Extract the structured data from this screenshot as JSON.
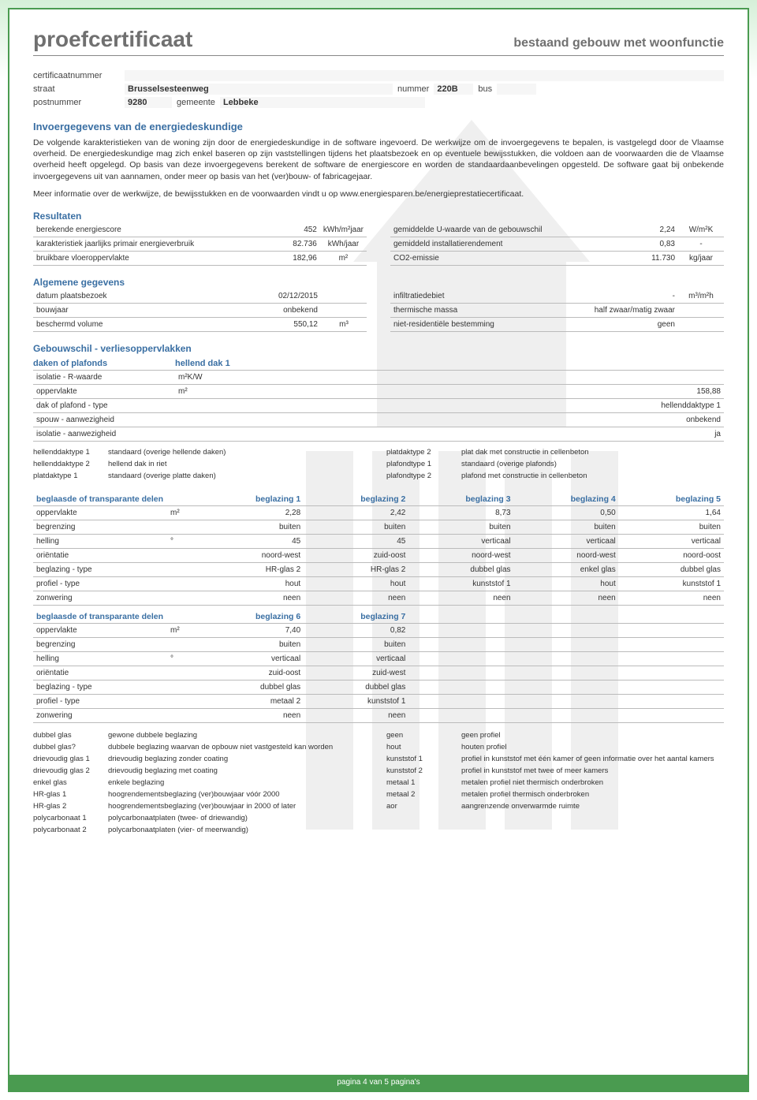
{
  "doc": {
    "title": "proefcertificaat",
    "subtitle": "bestaand gebouw met woonfunctie"
  },
  "header_fields": {
    "cert_label": "certificaatnummer",
    "cert_val": "",
    "straat_label": "straat",
    "straat_val": "Brusselsesteenweg",
    "nummer_label": "nummer",
    "nummer_val": "220B",
    "bus_label": "bus",
    "bus_val": "",
    "post_label": "postnummer",
    "post_val": "9280",
    "gemeente_label": "gemeente",
    "gemeente_val": "Lebbeke"
  },
  "section1": {
    "title": "Invoergegevens van de energiedeskundige",
    "p1": "De volgende karakteristieken van de woning zijn door de energiedeskundige in de software ingevoerd. De werkwijze om de invoergegevens te bepalen, is vastgelegd door de Vlaamse overheid. De energiedeskundige mag zich enkel baseren op zijn vaststellingen tijdens het plaatsbezoek en op eventuele bewijsstukken, die voldoen aan de voorwaarden die de Vlaamse overheid heeft opgelegd. Op basis van deze invoergegevens berekent de software de energiescore en worden de standaardaanbevelingen opgesteld. De software gaat bij onbekende invoergegevens uit van aannamen, onder meer op basis van het (ver)bouw- of fabricagejaar.",
    "p2": "Meer informatie over de werkwijze, de bewijsstukken en de voorwaarden vindt u op www.energiesparen.be/energieprestatiecertificaat."
  },
  "resultaten": {
    "title": "Resultaten",
    "left": [
      {
        "label": "berekende energiescore",
        "val": "452",
        "unit": "kWh/m²jaar"
      },
      {
        "label": "karakteristiek jaarlijks primair energieverbruik",
        "val": "82.736",
        "unit": "kWh/jaar"
      },
      {
        "label": "bruikbare vloeroppervlakte",
        "val": "182,96",
        "unit": "m²"
      }
    ],
    "right": [
      {
        "label": "gemiddelde U-waarde van de gebouwschil",
        "val": "2,24",
        "unit": "W/m²K"
      },
      {
        "label": "gemiddeld installatierendement",
        "val": "0,83",
        "unit": "-"
      },
      {
        "label": "CO2-emissie",
        "val": "11.730",
        "unit": "kg/jaar"
      }
    ]
  },
  "algemeen": {
    "title": "Algemene gegevens",
    "left": [
      {
        "label": "datum plaatsbezoek",
        "val": "02/12/2015",
        "unit": ""
      },
      {
        "label": "bouwjaar",
        "val": "onbekend",
        "unit": ""
      },
      {
        "label": "beschermd volume",
        "val": "550,12",
        "unit": "m³"
      }
    ],
    "right": [
      {
        "label": "infiltratiedebiet",
        "val": "-",
        "unit": "m³/m²h"
      },
      {
        "label": "thermische massa",
        "val": "half zwaar/matig zwaar",
        "unit": ""
      },
      {
        "label": "niet-residentiële bestemming",
        "val": "geen",
        "unit": ""
      }
    ]
  },
  "schil": {
    "title": "Gebouwschil - verliesoppervlakken",
    "daken": {
      "head_l": "daken of plafonds",
      "head_r": "hellend dak 1",
      "rows": [
        {
          "label": "isolatie - R-waarde",
          "unit": "m²K/W",
          "val": ""
        },
        {
          "label": "oppervlakte",
          "unit": "m²",
          "val": "158,88"
        },
        {
          "label": "dak of plafond - type",
          "unit": "",
          "val": "hellenddaktype 1"
        },
        {
          "label": "spouw - aanwezigheid",
          "unit": "",
          "val": "onbekend"
        },
        {
          "label": "isolatie - aanwezigheid",
          "unit": "",
          "val": "ja"
        }
      ],
      "legend": [
        [
          "hellenddaktype 1",
          "standaard (overige hellende daken)",
          "platdaktype 2",
          "plat dak met constructie in cellenbeton"
        ],
        [
          "hellenddaktype 2",
          "hellend dak in riet",
          "plafondtype 1",
          "standaard (overige plafonds)"
        ],
        [
          "platdaktype 1",
          "standaard (overige platte daken)",
          "plafondtype 2",
          "plafond met constructie in cellenbeton"
        ]
      ]
    },
    "beglazing1": {
      "head": "beglaasde of transparante delen",
      "cols": [
        "beglazing 1",
        "beglazing 2",
        "beglazing 3",
        "beglazing 4",
        "beglazing 5"
      ],
      "rows": [
        {
          "label": "oppervlakte",
          "unit": "m²",
          "vals": [
            "2,28",
            "2,42",
            "8,73",
            "0,50",
            "1,64"
          ]
        },
        {
          "label": "begrenzing",
          "unit": "",
          "vals": [
            "buiten",
            "buiten",
            "buiten",
            "buiten",
            "buiten"
          ]
        },
        {
          "label": "helling",
          "unit": "°",
          "vals": [
            "45",
            "45",
            "verticaal",
            "verticaal",
            "verticaal"
          ]
        },
        {
          "label": "oriëntatie",
          "unit": "",
          "vals": [
            "noord-west",
            "zuid-oost",
            "noord-west",
            "noord-west",
            "noord-oost"
          ]
        },
        {
          "label": "beglazing - type",
          "unit": "",
          "vals": [
            "HR-glas 2",
            "HR-glas 2",
            "dubbel glas",
            "enkel glas",
            "dubbel glas"
          ]
        },
        {
          "label": "profiel - type",
          "unit": "",
          "vals": [
            "hout",
            "hout",
            "kunststof 1",
            "hout",
            "kunststof 1"
          ]
        },
        {
          "label": "zonwering",
          "unit": "",
          "vals": [
            "neen",
            "neen",
            "neen",
            "neen",
            "neen"
          ]
        }
      ]
    },
    "beglazing2": {
      "head": "beglaasde of transparante delen",
      "cols": [
        "beglazing 6",
        "beglazing 7"
      ],
      "rows": [
        {
          "label": "oppervlakte",
          "unit": "m²",
          "vals": [
            "7,40",
            "0,82"
          ]
        },
        {
          "label": "begrenzing",
          "unit": "",
          "vals": [
            "buiten",
            "buiten"
          ]
        },
        {
          "label": "helling",
          "unit": "°",
          "vals": [
            "verticaal",
            "verticaal"
          ]
        },
        {
          "label": "oriëntatie",
          "unit": "",
          "vals": [
            "zuid-oost",
            "zuid-west"
          ]
        },
        {
          "label": "beglazing - type",
          "unit": "",
          "vals": [
            "dubbel glas",
            "dubbel glas"
          ]
        },
        {
          "label": "profiel - type",
          "unit": "",
          "vals": [
            "metaal 2",
            "kunststof 1"
          ]
        },
        {
          "label": "zonwering",
          "unit": "",
          "vals": [
            "neen",
            "neen"
          ]
        }
      ]
    },
    "beglazing_legend": [
      [
        "dubbel glas",
        "gewone dubbele beglazing",
        "geen",
        "geen profiel"
      ],
      [
        "dubbel glas?",
        "dubbele beglazing waarvan de opbouw niet vastgesteld kan worden",
        "hout",
        "houten profiel"
      ],
      [
        "drievoudig glas 1",
        "drievoudig beglazing zonder coating",
        "kunststof 1",
        "profiel in kunststof met één kamer of geen informatie over het aantal kamers"
      ],
      [
        "drievoudig glas 2",
        "drievoudig beglazing met coating",
        "kunststof 2",
        "profiel in kunststof met twee of meer kamers"
      ],
      [
        "enkel glas",
        "enkele beglazing",
        "metaal 1",
        "metalen profiel niet thermisch onderbroken"
      ],
      [
        "HR-glas 1",
        "hoogrendementsbeglazing (ver)bouwjaar vóór 2000",
        "metaal 2",
        "metalen profiel thermisch onderbroken"
      ],
      [
        "HR-glas 2",
        "hoogrendementsbeglazing (ver)bouwjaar in 2000 of later",
        "aor",
        "aangrenzende onverwarmde ruimte"
      ],
      [
        "polycarbonaat 1",
        "polycarbonaatplaten (twee- of driewandig)",
        "",
        ""
      ],
      [
        "polycarbonaat 2",
        "polycarbonaatplaten (vier- of meerwandig)",
        "",
        ""
      ]
    ]
  },
  "footer": "pagina 4 van 5 pagina's"
}
